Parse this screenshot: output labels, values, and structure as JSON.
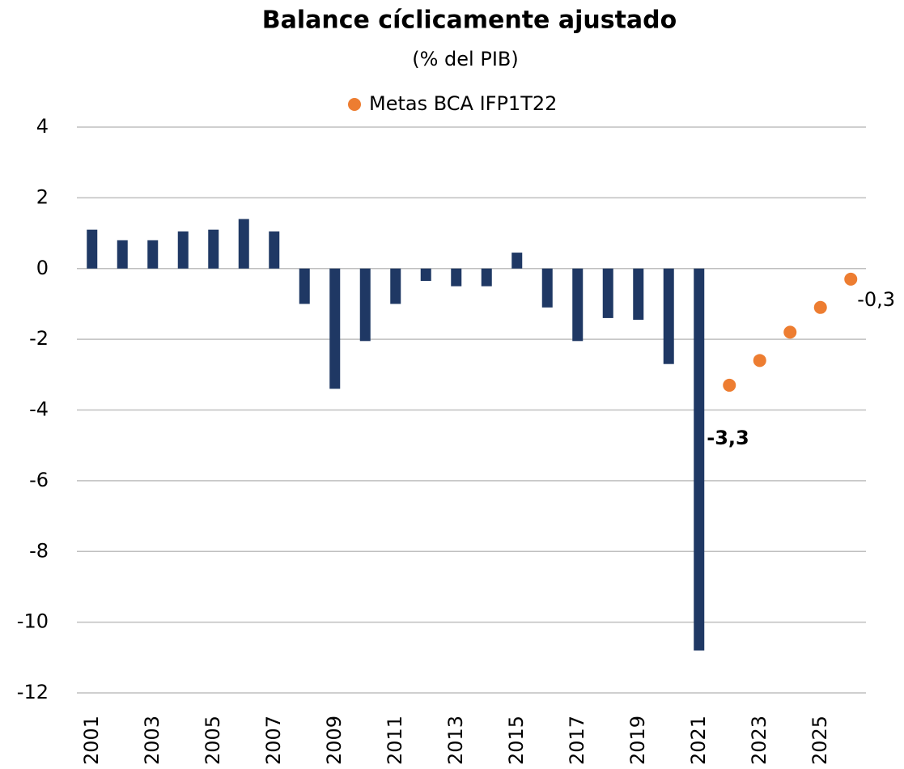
{
  "chart_data": {
    "type": "bar",
    "title": "Balance cíclicamente ajustado",
    "subtitle": "(% del PIB)",
    "categories": [
      "2001",
      null,
      "2003",
      null,
      "2005",
      null,
      "2007",
      null,
      "2009",
      null,
      "2011",
      null,
      "2013",
      null,
      "2015",
      null,
      "2017",
      null,
      "2019",
      null,
      "2021",
      null,
      "2023",
      null,
      "2025",
      null
    ],
    "series": [
      {
        "type": "bar",
        "color": "#1f3864",
        "values": [
          1.1,
          0.8,
          0.8,
          1.05,
          1.1,
          1.4,
          1.05,
          -1.0,
          -3.4,
          -2.05,
          -1.0,
          -0.35,
          -0.5,
          -0.5,
          0.45,
          -1.1,
          -2.05,
          -1.4,
          -1.45,
          -2.7,
          -10.8,
          null,
          null,
          null,
          null,
          null
        ]
      },
      {
        "type": "scatter",
        "name": "Metas BCA IFP1T22",
        "color": "#ed7d31",
        "values": [
          null,
          null,
          null,
          null,
          null,
          null,
          null,
          null,
          null,
          null,
          null,
          null,
          null,
          null,
          null,
          null,
          null,
          null,
          null,
          null,
          null,
          -3.3,
          -2.6,
          -1.8,
          -1.1,
          -0.3
        ],
        "value_labels": [
          null,
          null,
          null,
          null,
          null,
          null,
          null,
          null,
          null,
          null,
          null,
          null,
          null,
          null,
          null,
          null,
          null,
          null,
          null,
          null,
          null,
          "-3,3",
          null,
          null,
          null,
          "-0,3"
        ],
        "value_label_colors": [
          null,
          null,
          null,
          null,
          null,
          null,
          null,
          null,
          null,
          null,
          null,
          null,
          null,
          null,
          null,
          null,
          null,
          null,
          null,
          null,
          null,
          "#c00000",
          null,
          null,
          null,
          "#000000"
        ]
      }
    ],
    "ylim": [
      -12,
      4
    ],
    "yticks": [
      4,
      2,
      0,
      -2,
      -4,
      -6,
      -8,
      -10,
      -12
    ],
    "grid": true
  }
}
